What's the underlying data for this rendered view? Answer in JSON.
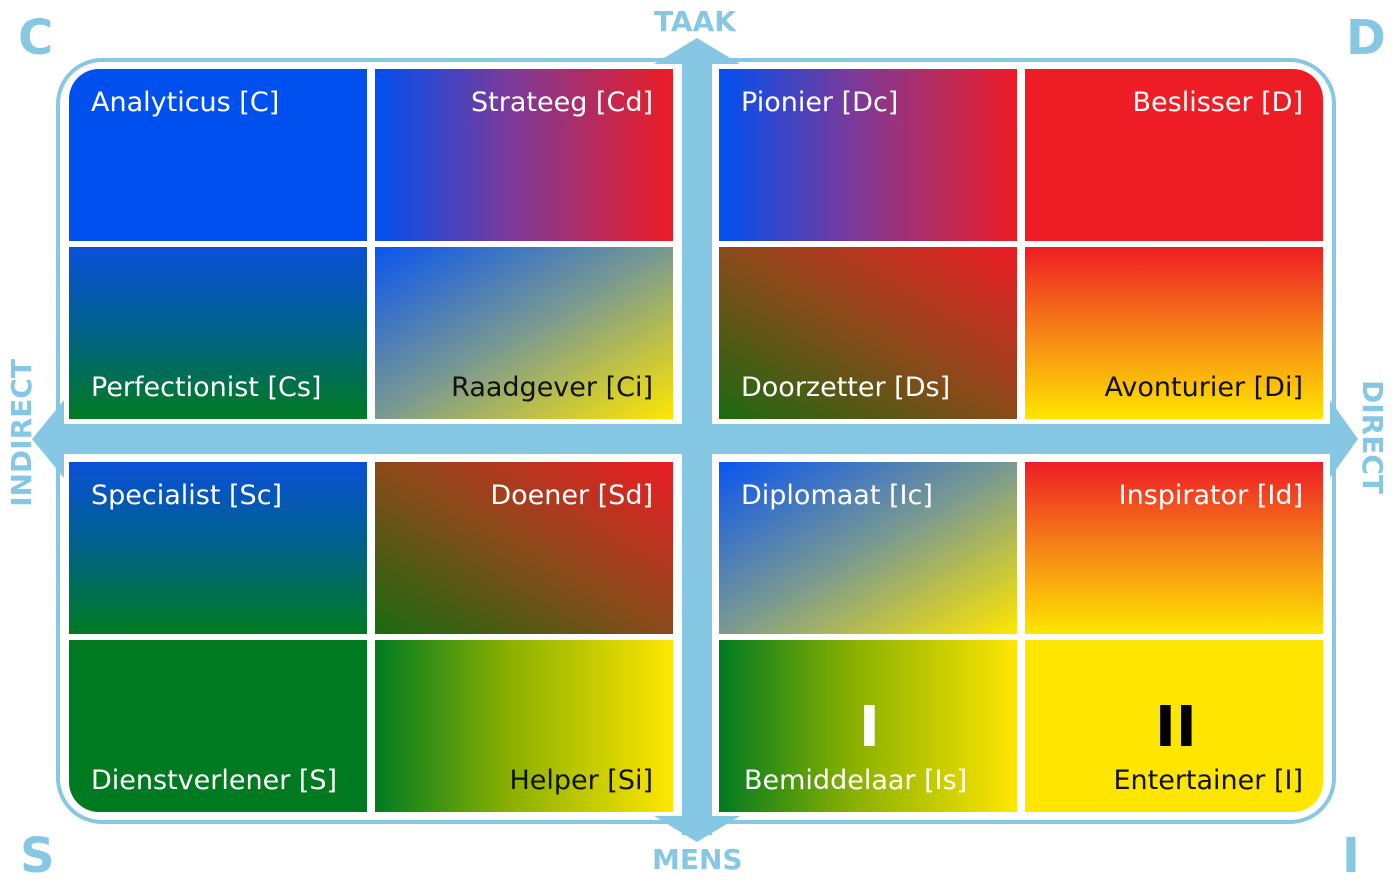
{
  "corners": {
    "top_left": "C",
    "top_right": "D",
    "bottom_left": "S",
    "bottom_right": "I"
  },
  "axes": {
    "top": "TAAK",
    "bottom": "MENS",
    "left": "INDIRECT",
    "right": "DIRECT"
  },
  "cells": {
    "c1": "Analyticus [C]",
    "c2": "Strateeg [Cd]",
    "c3": "Perfectionist [Cs]",
    "c4": "Raadgever [Ci]",
    "d1": "Pionier [Dc]",
    "d2": "Beslisser [D]",
    "d3": "Doorzetter [Ds]",
    "d4": "Avonturier [Di]",
    "s1": "Specialist [Sc]",
    "s2": "Doener [Sd]",
    "s3": "Dienstverlener [S]",
    "s4": "Helper [Si]",
    "i1": "Diplomaat [Ic]",
    "i2": "Inspirator [Id]",
    "i3": "Bemiddelaar [Is]",
    "i4": "Entertainer [I]"
  },
  "marks": {
    "mark_one": "I",
    "mark_two": "II"
  },
  "colors": {
    "axis": "#86c8e4",
    "blue": "#0050f0",
    "red": "#ee1c25",
    "green": "#007a20",
    "yellow": "#ffe600"
  }
}
